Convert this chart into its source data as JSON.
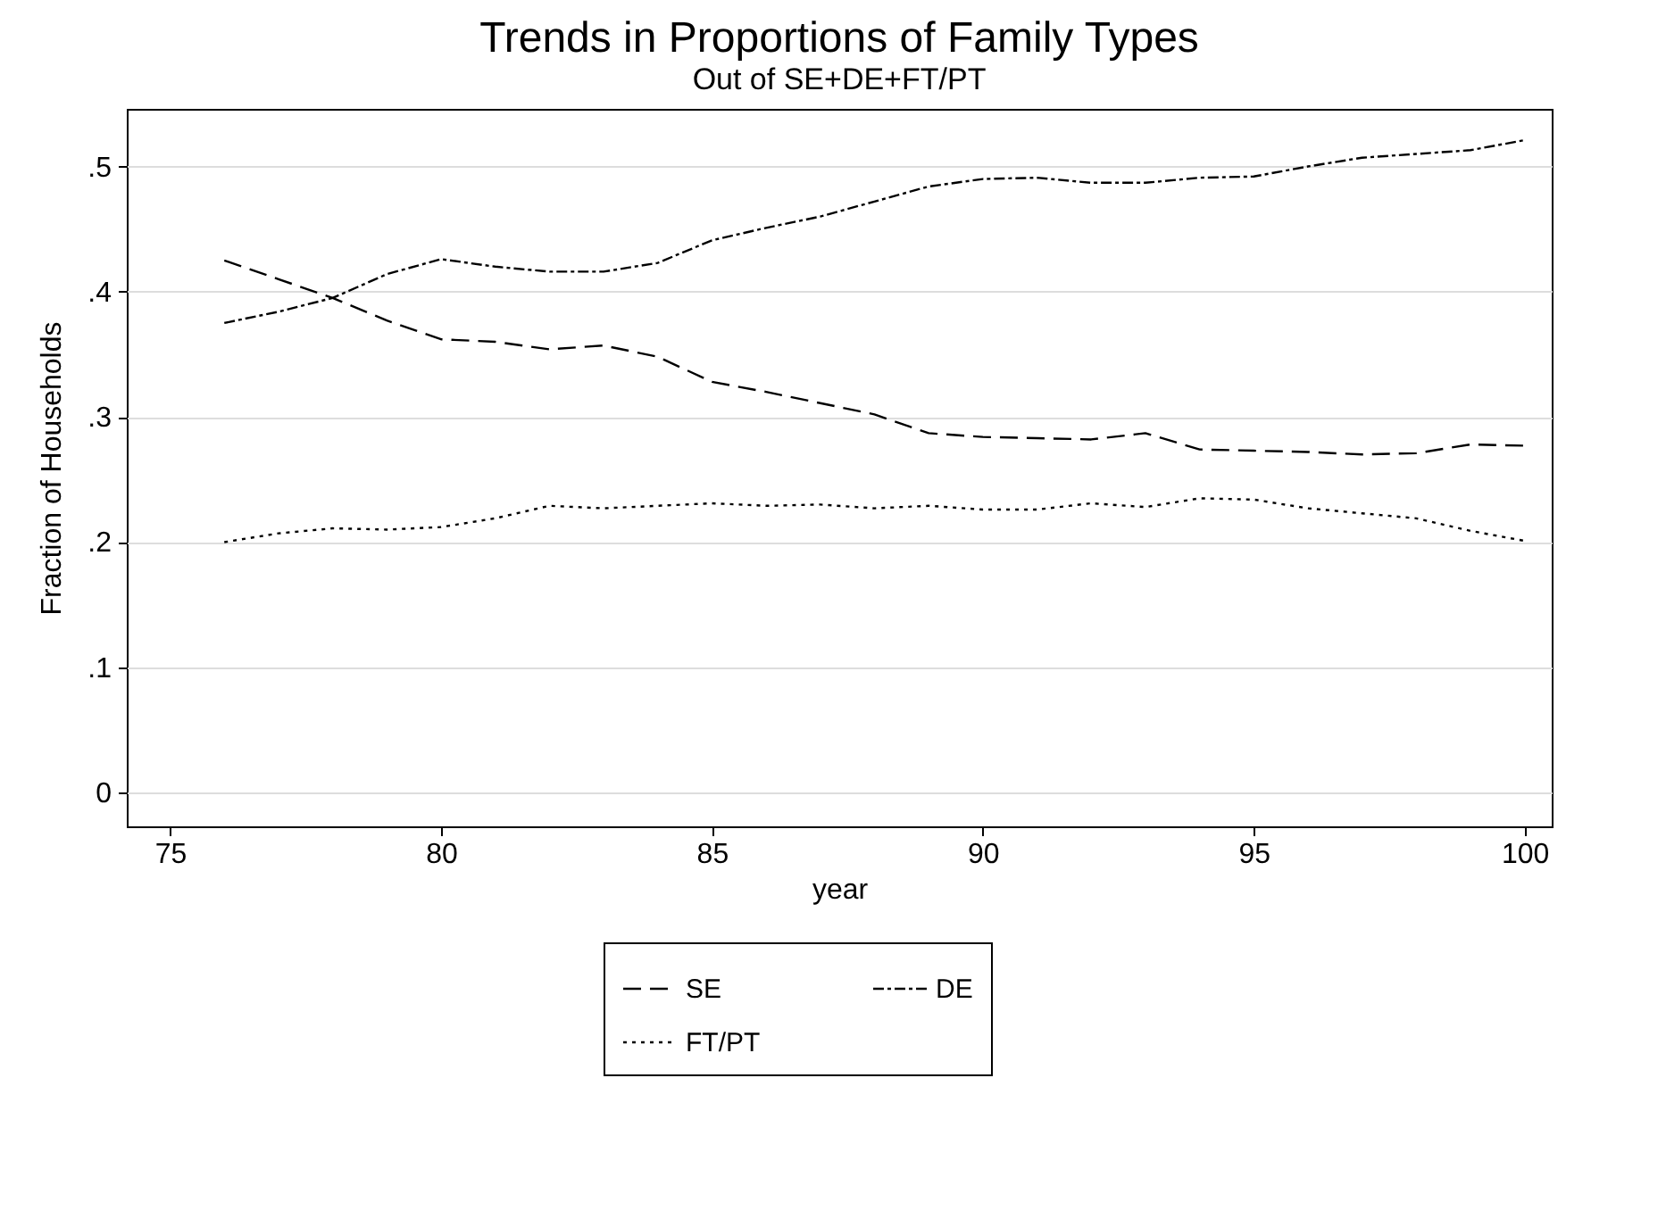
{
  "chart_data": {
    "type": "line",
    "title": "Trends in Proportions of Family Types",
    "subtitle": "Out of SE+DE+FT/PT",
    "xlabel": "year",
    "ylabel": "Fraction of Households",
    "x": [
      76,
      77,
      78,
      79,
      80,
      81,
      82,
      83,
      84,
      85,
      86,
      87,
      88,
      89,
      90,
      91,
      92,
      93,
      94,
      95,
      96,
      97,
      98,
      99,
      100
    ],
    "series": [
      {
        "name": "SE",
        "color": "#000000",
        "line_style": "dashed",
        "values": [
          0.425,
          0.41,
          0.395,
          0.377,
          0.362,
          0.36,
          0.354,
          0.357,
          0.348,
          0.328,
          0.32,
          0.311,
          0.302,
          0.287,
          0.284,
          0.283,
          0.282,
          0.287,
          0.274,
          0.273,
          0.272,
          0.27,
          0.271,
          0.278,
          0.277
        ]
      },
      {
        "name": "DE",
        "color": "#000000",
        "line_style": "dashdot",
        "values": [
          0.375,
          0.384,
          0.395,
          0.414,
          0.426,
          0.42,
          0.416,
          0.416,
          0.423,
          0.441,
          0.451,
          0.46,
          0.472,
          0.484,
          0.49,
          0.491,
          0.487,
          0.487,
          0.491,
          0.492,
          0.5,
          0.507,
          0.51,
          0.513,
          0.521
        ]
      },
      {
        "name": "FT/PT",
        "color": "#000000",
        "line_style": "dotted",
        "values": [
          0.2,
          0.207,
          0.211,
          0.21,
          0.212,
          0.219,
          0.229,
          0.227,
          0.229,
          0.231,
          0.229,
          0.23,
          0.227,
          0.229,
          0.226,
          0.226,
          0.231,
          0.228,
          0.235,
          0.234,
          0.227,
          0.223,
          0.219,
          0.209,
          0.201
        ]
      }
    ],
    "xlim": [
      74.2,
      100.5
    ],
    "ylim": [
      -0.027,
      0.546
    ],
    "xticks": [
      75,
      80,
      85,
      90,
      95,
      100
    ],
    "yticks": [
      0,
      {
        "value": 0.1,
        "label": ".1"
      },
      {
        "value": 0.2,
        "label": ".2"
      },
      {
        "value": 0.3,
        "label": ".3"
      },
      {
        "value": 0.4,
        "label": ".4"
      },
      {
        "value": 0.5,
        "label": ".5"
      }
    ],
    "grid": "y",
    "legend": "bottom"
  }
}
